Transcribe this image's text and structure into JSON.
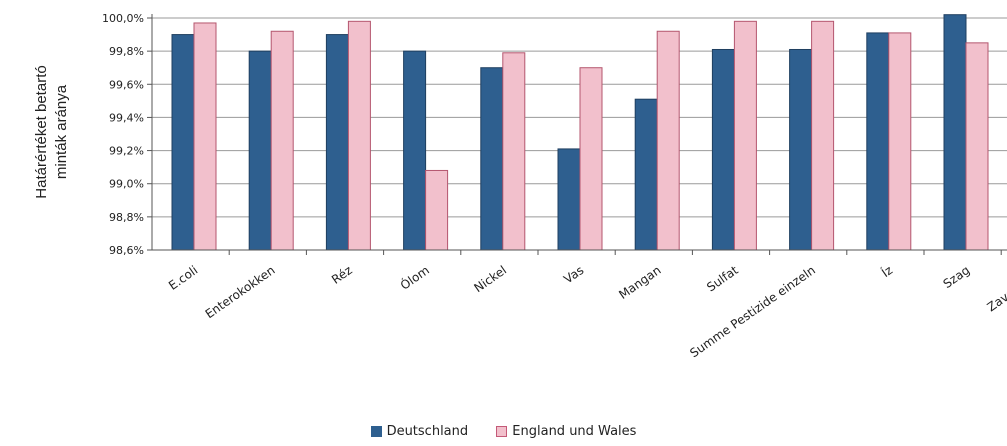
{
  "chart_data": {
    "type": "bar",
    "ylabel_line1": "Határértéket betartó",
    "ylabel_line2": "minták aránya",
    "xlabel": "",
    "ylim": [
      98.6,
      100.0
    ],
    "ytick_labels": [
      "100,0%",
      "99,8%",
      "99,6%",
      "99,4%",
      "99,2%",
      "99,0%",
      "98,8%",
      "98,6%"
    ],
    "ytick_values": [
      100.0,
      99.8,
      99.6,
      99.4,
      99.2,
      99.0,
      98.8,
      98.6
    ],
    "categories": [
      "E.coli",
      "Enterokokken",
      "Réz",
      "Ólom",
      "Nickel",
      "Vas",
      "Mangan",
      "Sulfat",
      "Summe Pestizide einzeln",
      "Íz",
      "Szag",
      "Zavarosság"
    ],
    "series": [
      {
        "name": "Deutschland",
        "color": "#2e5f8f",
        "values": [
          99.9,
          99.8,
          99.9,
          99.8,
          99.7,
          99.21,
          99.51,
          99.81,
          99.81,
          99.91,
          100.02,
          null
        ]
      },
      {
        "name": "England und Wales",
        "color": "#f2c0cc",
        "values": [
          99.97,
          99.92,
          99.98,
          99.08,
          99.79,
          99.7,
          99.92,
          99.98,
          99.98,
          99.91,
          99.85,
          null
        ]
      }
    ],
    "grid": true,
    "legend_position": "bottom-center"
  }
}
